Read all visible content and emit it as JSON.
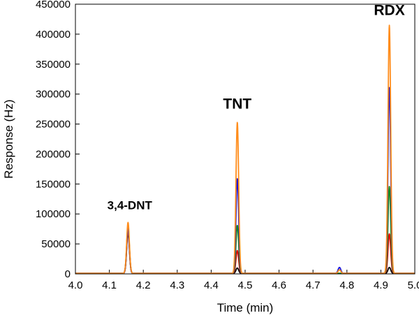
{
  "chart_data": {
    "type": "line",
    "xlabel": "Time (min)",
    "ylabel": "Response (Hz)",
    "xlim": [
      4.0,
      5.0
    ],
    "ylim": [
      0,
      450000
    ],
    "xticks": [
      4.0,
      4.1,
      4.2,
      4.3,
      4.4,
      4.5,
      4.6,
      4.7,
      4.8,
      4.9,
      5.0
    ],
    "xtick_labels": [
      "4.0",
      "4.1",
      "4.2",
      "4.3",
      "4.4",
      "4.5",
      "4.6",
      "4.7",
      "4.8",
      "4.9",
      "5.0"
    ],
    "yticks": [
      0,
      50000,
      100000,
      150000,
      200000,
      250000,
      300000,
      350000,
      400000,
      450000
    ],
    "ytick_labels": [
      "0",
      "50000",
      "100000",
      "150000",
      "200000",
      "250000",
      "300000",
      "350000",
      "400000",
      "450000"
    ],
    "baseline": 800,
    "peak_width_min": 0.004,
    "annotations": [
      {
        "text": "3,4-DNT",
        "x": 4.16,
        "y": 108000,
        "size": "small"
      },
      {
        "text": "TNT",
        "x": 4.477,
        "y": 276000,
        "size": "large"
      },
      {
        "text": "RDX",
        "x": 4.925,
        "y": 432000,
        "size": "large"
      }
    ],
    "series": [
      {
        "name": "black",
        "color": "#000000",
        "peaks": [
          {
            "x": 4.155,
            "y": 68000
          },
          {
            "x": 4.477,
            "y": 9000
          },
          {
            "x": 4.925,
            "y": 10000
          }
        ]
      },
      {
        "name": "red",
        "color": "#e00000",
        "peaks": [
          {
            "x": 4.155,
            "y": 72000
          },
          {
            "x": 4.477,
            "y": 38000
          },
          {
            "x": 4.925,
            "y": 66000
          }
        ]
      },
      {
        "name": "green",
        "color": "#1a8a1a",
        "peaks": [
          {
            "x": 4.155,
            "y": 78000
          },
          {
            "x": 4.477,
            "y": 80000
          },
          {
            "x": 4.925,
            "y": 145000
          }
        ]
      },
      {
        "name": "blue",
        "color": "#1010e0",
        "peaks": [
          {
            "x": 4.155,
            "y": 75000
          },
          {
            "x": 4.477,
            "y": 158000
          },
          {
            "x": 4.778,
            "y": 10000
          },
          {
            "x": 4.925,
            "y": 310000
          }
        ]
      },
      {
        "name": "orange",
        "color": "#ff8c1a",
        "peaks": [
          {
            "x": 4.155,
            "y": 85000
          },
          {
            "x": 4.477,
            "y": 252000
          },
          {
            "x": 4.778,
            "y": 6000
          },
          {
            "x": 4.925,
            "y": 414000
          }
        ]
      }
    ]
  }
}
